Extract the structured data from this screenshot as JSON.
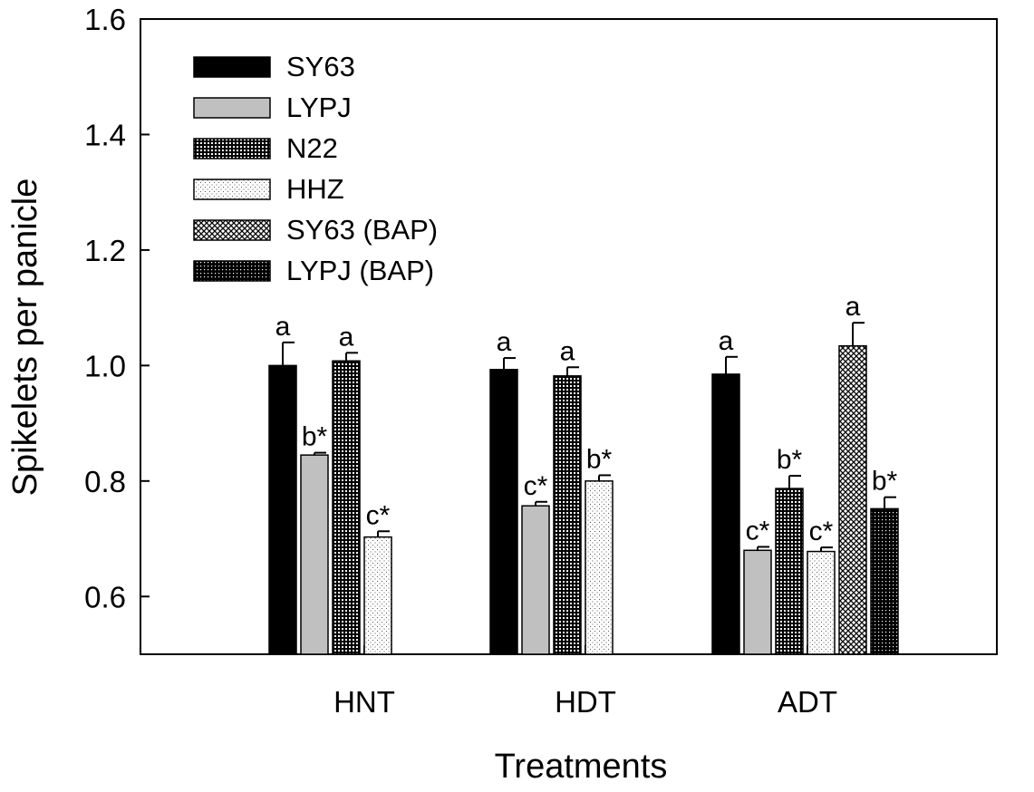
{
  "chart_data": {
    "type": "bar",
    "title": "",
    "xlabel": "Treatments",
    "ylabel": "Spikelets per panicle",
    "ylim": [
      0.5,
      1.6
    ],
    "yticks": [
      "0.6",
      "0.8",
      "1.0",
      "1.2",
      "1.4",
      "1.6"
    ],
    "categories": [
      "HNT",
      "HDT",
      "ADT"
    ],
    "legend_position": "top-left",
    "series": [
      {
        "name": "SY63",
        "pattern": "solid-black",
        "values": [
          1.0,
          0.993,
          0.985
        ],
        "errors": [
          0.04,
          0.02,
          0.03
        ],
        "labels": [
          "a",
          "a",
          "a"
        ]
      },
      {
        "name": "LYPJ",
        "pattern": "solid-gray",
        "values": [
          0.845,
          0.757,
          0.68
        ],
        "errors": [
          0.004,
          0.007,
          0.006
        ],
        "labels": [
          "b*",
          "c*",
          "c*"
        ]
      },
      {
        "name": "N22",
        "pattern": "fine-grid",
        "values": [
          1.008,
          0.982,
          0.787
        ],
        "errors": [
          0.014,
          0.015,
          0.022
        ],
        "labels": [
          "a",
          "a",
          "b*"
        ]
      },
      {
        "name": "HHZ",
        "pattern": "light-dots",
        "values": [
          0.703,
          0.8,
          0.678
        ],
        "errors": [
          0.01,
          0.01,
          0.007
        ],
        "labels": [
          "c*",
          "b*",
          "c*"
        ]
      },
      {
        "name": "SY63 (BAP)",
        "pattern": "crosshatch",
        "values": [
          null,
          null,
          1.034
        ],
        "errors": [
          null,
          null,
          0.04
        ],
        "labels": [
          "",
          "",
          "a"
        ]
      },
      {
        "name": "LYPJ (BAP)",
        "pattern": "dark-dots",
        "values": [
          null,
          null,
          0.752
        ],
        "errors": [
          null,
          null,
          0.02
        ],
        "labels": [
          "",
          "",
          "b*"
        ]
      }
    ],
    "colors": {
      "axis": "#000000",
      "solid_black": "#000000",
      "solid_gray": "#c0c0c0",
      "background": "#ffffff"
    }
  }
}
